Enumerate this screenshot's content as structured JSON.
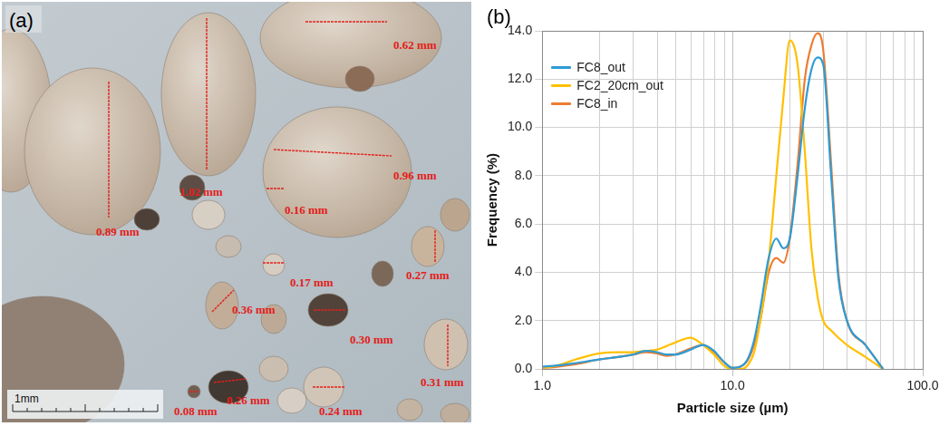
{
  "panel_a": {
    "panel_label": "(a)",
    "scale_bar": "1mm",
    "annotations": [
      "0.62 mm",
      "1.02 mm",
      "0.96 mm",
      "0.89 mm",
      "0.16 mm",
      "0.17 mm",
      "0.27 mm",
      "0.36 mm",
      "0.30 mm",
      "0.31 mm",
      "0.08 mm",
      "0.26 mm",
      "0.24 mm"
    ]
  },
  "chart_data": {
    "type": "line",
    "panel_label": "(b)",
    "x_label": "Particle size (µm)",
    "y_label": "Frequency (%)",
    "x": [
      1,
      1.2,
      1.5,
      2,
      2.5,
      3,
      3.5,
      4,
      4.5,
      5,
      6,
      7,
      8,
      9,
      10,
      11,
      12,
      13,
      14,
      15.5,
      17,
      18.5,
      20,
      22,
      24,
      26,
      28,
      30,
      33,
      36,
      40,
      50,
      62
    ],
    "series": [
      {
        "name": "FC8_out",
        "color": "#2e9bd6",
        "line_style": "solid",
        "values": [
          0.1,
          0.15,
          0.25,
          0.4,
          0.5,
          0.6,
          0.75,
          0.7,
          0.6,
          0.6,
          0.8,
          1.0,
          0.75,
          0.3,
          0.05,
          0.1,
          0.4,
          1.2,
          2.5,
          4.6,
          5.4,
          5.0,
          5.4,
          8.0,
          10.8,
          12.4,
          12.9,
          12.6,
          8.0,
          3.8,
          2.0,
          1.0,
          0.0
        ]
      },
      {
        "name": "FC2_20cm_out",
        "color": "#ffc000",
        "line_style": "solid",
        "values": [
          0.05,
          0.15,
          0.4,
          0.65,
          0.7,
          0.7,
          0.75,
          0.8,
          0.95,
          1.1,
          1.3,
          1.0,
          0.6,
          0.15,
          0.0,
          0.0,
          0.15,
          0.7,
          2.0,
          4.5,
          8.0,
          11.2,
          13.6,
          12.6,
          9.0,
          5.0,
          3.0,
          2.0,
          1.6,
          1.3,
          1.0,
          0.5,
          0.0
        ]
      },
      {
        "name": "FC8_in",
        "color": "#ed7d31",
        "line_style": "solid",
        "values": [
          0.05,
          0.1,
          0.2,
          0.4,
          0.5,
          0.6,
          0.7,
          0.65,
          0.55,
          0.6,
          0.85,
          1.0,
          0.7,
          0.3,
          0.05,
          0.1,
          0.35,
          1.0,
          2.0,
          4.0,
          4.6,
          4.4,
          5.4,
          8.5,
          12.0,
          13.4,
          13.9,
          13.2,
          8.5,
          4.0,
          2.0,
          1.0,
          0.0
        ]
      }
    ],
    "xlim": [
      1,
      100
    ],
    "xticks": [
      {
        "value": 1,
        "label": "1.0"
      },
      {
        "value": 10,
        "label": "10.0"
      },
      {
        "value": 100,
        "label": "100.0"
      }
    ],
    "ylim": [
      0,
      14
    ],
    "yticks": [
      {
        "value": 0,
        "label": "0.0"
      },
      {
        "value": 2,
        "label": "2.0"
      },
      {
        "value": 4,
        "label": "4.0"
      },
      {
        "value": 6,
        "label": "6.0"
      },
      {
        "value": 8,
        "label": "8.0"
      },
      {
        "value": 10,
        "label": "10.0"
      },
      {
        "value": 12,
        "label": "12.0"
      },
      {
        "value": 14,
        "label": "14.0"
      }
    ],
    "log": "x",
    "grid": true,
    "legend": "top-left"
  }
}
